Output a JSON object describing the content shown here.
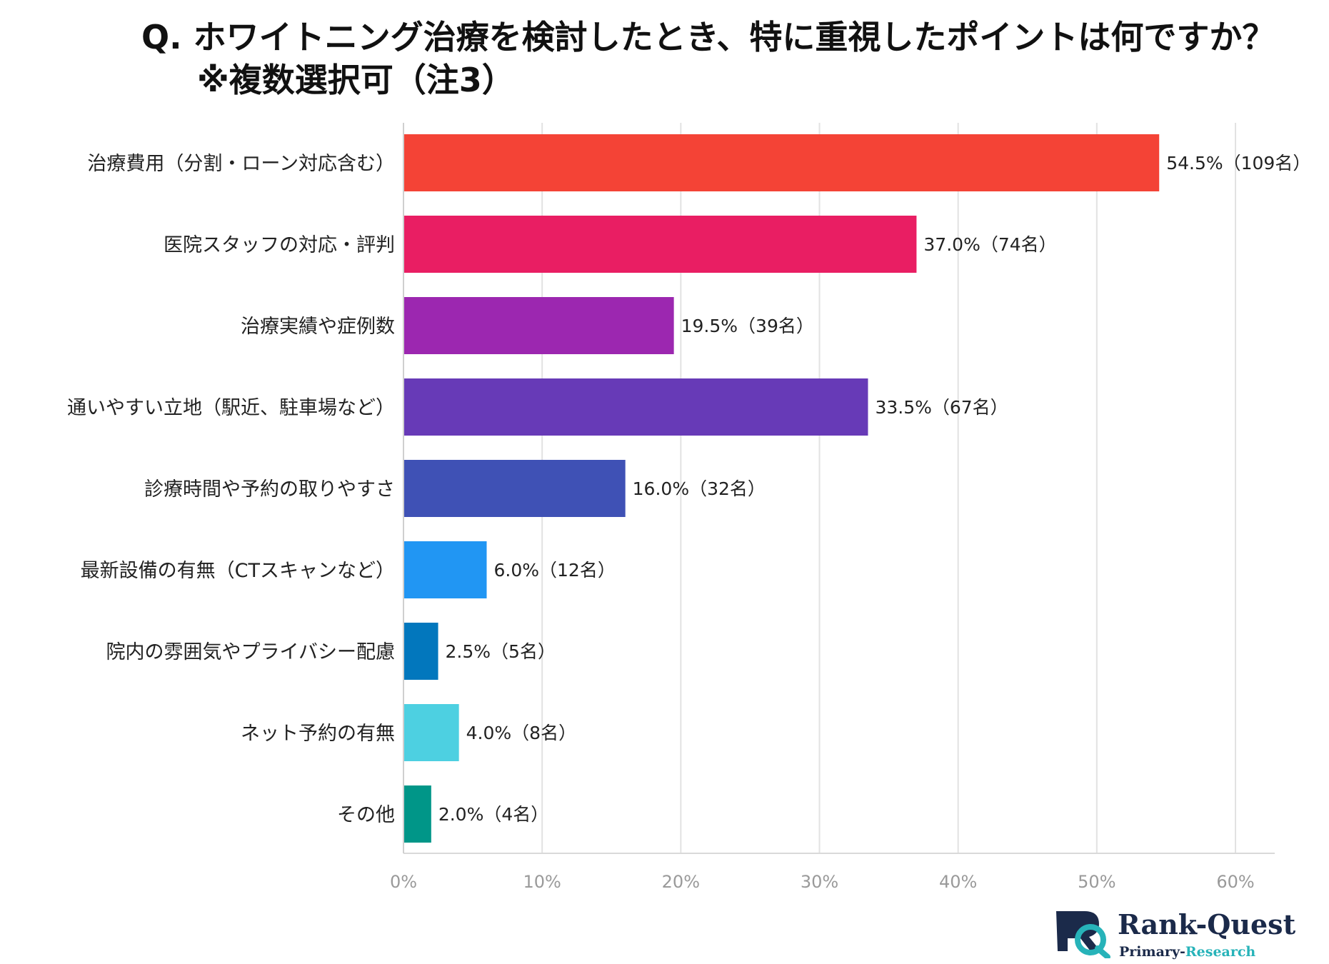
{
  "title": {
    "line1": "Q.  ホワイトニング治療を検討したとき、特に重視したポイントは何ですか？",
    "line2": "※複数選択可（注3）"
  },
  "chart_data": {
    "type": "bar",
    "orientation": "horizontal",
    "categories": [
      "治療費用（分割・ローン対応含む）",
      "医院スタッフの対応・評判",
      "治療実績や症例数",
      "通いやすい立地（駅近、駐車場など）",
      "診療時間や予約の取りやすさ",
      "最新設備の有無（CTスキャンなど）",
      "院内の雰囲気やプライバシー配慮",
      "ネット予約の有無",
      "その他"
    ],
    "values": [
      54.5,
      37.0,
      19.5,
      33.5,
      16.0,
      6.0,
      2.5,
      4.0,
      2.0
    ],
    "value_labels": [
      "54.5%（109名）",
      "37.0%（74名）",
      "19.5%（39名）",
      "33.5%（67名）",
      "16.0%（32名）",
      "6.0%（12名）",
      "2.5%（5名）",
      "4.0%（8名）",
      "2.0%（4名）"
    ],
    "colors": [
      "#f44336",
      "#e91e63",
      "#9c27b0",
      "#673ab7",
      "#3f51b5",
      "#2196f3",
      "#0277bd",
      "#4dd0e1",
      "#009688"
    ],
    "xticks": [
      "0%",
      "10%",
      "20%",
      "30%",
      "40%",
      "50%",
      "60%"
    ],
    "xlim": [
      0,
      60
    ],
    "grid": true,
    "legend": "none"
  },
  "logo": {
    "name_part1": "Rank-",
    "name_part2": "Quest",
    "sub_part1": "Primary-",
    "sub_part2": "Research"
  }
}
